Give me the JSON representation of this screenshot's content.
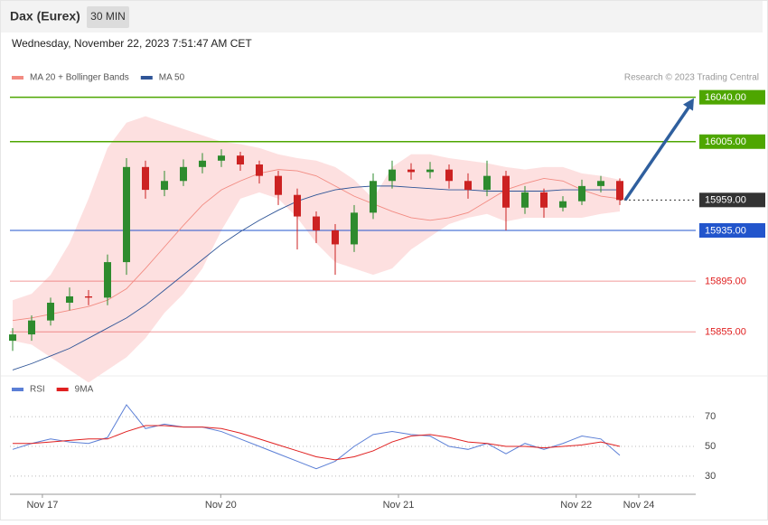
{
  "header": {
    "title": "Dax (Eurex)",
    "timeframe": "30 MIN"
  },
  "timestamp": "Wednesday, November 22, 2023 7:51:47 AM CET",
  "chart_data": [
    {
      "type": "candlestick",
      "credit": "Research © 2023 Trading Central",
      "up_color": "#2e8b2e",
      "down_color": "#cc2222",
      "xlim": [
        -0.43,
        108
      ],
      "ylim": [
        15821,
        16049
      ],
      "x": [
        0,
        3,
        6,
        9,
        12,
        15,
        18,
        21,
        24,
        27,
        30,
        33,
        36,
        39,
        42,
        45,
        48,
        51,
        54,
        57,
        60,
        63,
        66,
        69,
        72,
        75,
        78,
        81,
        84,
        87,
        90,
        93,
        96
      ],
      "open": [
        15848,
        15853,
        15864,
        15878,
        15883,
        15882,
        15910,
        15985,
        15967,
        15974,
        15985,
        15990,
        15994,
        15987,
        15978,
        15963,
        15946,
        15935,
        15924,
        15949,
        15974,
        15983,
        15981,
        15983,
        15974,
        15967,
        15978,
        15953,
        15965,
        15953,
        15958,
        15970,
        15974
      ],
      "high": [
        15858,
        15868,
        15882,
        15890,
        15888,
        15916,
        15992,
        15990,
        15982,
        15991,
        15996,
        15999,
        15997,
        15990,
        15982,
        15968,
        15950,
        15940,
        15955,
        15980,
        15990,
        15988,
        15989,
        15987,
        15980,
        15990,
        15982,
        15970,
        15968,
        15962,
        15975,
        15978,
        15976
      ],
      "low": [
        15840,
        15848,
        15860,
        15872,
        15876,
        15876,
        15900,
        15960,
        15962,
        15970,
        15980,
        15985,
        15982,
        15972,
        15955,
        15920,
        15925,
        15900,
        15918,
        15944,
        15968,
        15975,
        15976,
        15968,
        15960,
        15962,
        15935,
        15948,
        15945,
        15950,
        15955,
        15965,
        15955
      ],
      "close": [
        15853,
        15864,
        15878,
        15883,
        15882,
        15910,
        15985,
        15967,
        15974,
        15985,
        15990,
        15994,
        15987,
        15978,
        15963,
        15946,
        15935,
        15924,
        15949,
        15974,
        15983,
        15981,
        15983,
        15974,
        15967,
        15978,
        15953,
        15965,
        15953,
        15958,
        15970,
        15974,
        15959
      ],
      "series": [
        {
          "name": "MA 20 + Bollinger Bands",
          "color": "#f28b82",
          "band_color": "#fde0e0",
          "values": [
            15864,
            15866,
            15869,
            15872,
            15875,
            15880,
            15889,
            15905,
            15922,
            15939,
            15955,
            15967,
            15974,
            15980,
            15983,
            15982,
            15978,
            15970,
            15962,
            15956,
            15950,
            15945,
            15943,
            15945,
            15949,
            15958,
            15967,
            15972,
            15976,
            15974,
            15967,
            15962,
            15960
          ],
          "upper": [
            15880,
            15885,
            15900,
            15925,
            15960,
            16000,
            16020,
            16025,
            16020,
            16015,
            16010,
            16005,
            16003,
            16000,
            15995,
            15992,
            15990,
            15985,
            15975,
            15960,
            15985,
            15995,
            15995,
            15992,
            15990,
            15988,
            15985,
            15983,
            15985,
            15985,
            15980,
            15978,
            15975
          ],
          "lower": [
            15848,
            15845,
            15835,
            15825,
            15815,
            15825,
            15835,
            15850,
            15870,
            15885,
            15905,
            15935,
            15960,
            15965,
            15960,
            15945,
            15925,
            15910,
            15905,
            15900,
            15905,
            15920,
            15930,
            15940,
            15945,
            15948,
            15942,
            15945,
            15945,
            15945,
            15945,
            15948,
            15950
          ]
        },
        {
          "name": "MA 50",
          "color": "#2f5597",
          "values": [
            15825,
            15830,
            15836,
            15842,
            15850,
            15858,
            15866,
            15876,
            15888,
            15900,
            15912,
            15924,
            15934,
            15943,
            15951,
            15958,
            15963,
            15967,
            15969,
            15970,
            15970,
            15969,
            15968,
            15967,
            15967,
            15966,
            15966,
            15966,
            15966,
            15967,
            15967,
            15967,
            15967
          ]
        }
      ],
      "levels": [
        {
          "value": 16040,
          "label": "16040.00",
          "color": "#4ea600",
          "style": "tag"
        },
        {
          "value": 16005,
          "label": "16005.00",
          "color": "#4ea600",
          "style": "tag"
        },
        {
          "value": 15959,
          "label": "15959.00",
          "color": "#333333",
          "style": "current"
        },
        {
          "value": 15935,
          "label": "15935.00",
          "color": "#2255cc",
          "style": "tag"
        },
        {
          "value": 15895,
          "label": "15895.00",
          "color": "#e02020",
          "style": "text"
        },
        {
          "value": 15855,
          "label": "15855.00",
          "color": "#e02020",
          "style": "text"
        }
      ]
    },
    {
      "type": "line",
      "xlim": [
        -0.43,
        108
      ],
      "ylim": [
        19,
        95
      ],
      "yticks": [
        30,
        50,
        70
      ],
      "xticks": [
        {
          "value": 4.7,
          "label": "Nov 17"
        },
        {
          "value": 32.9,
          "label": "Nov 20"
        },
        {
          "value": 61,
          "label": "Nov 21"
        },
        {
          "value": 89.1,
          "label": "Nov 22"
        },
        {
          "value": 99,
          "label": "Nov 24"
        }
      ],
      "x": [
        0,
        3,
        6,
        9,
        12,
        15,
        18,
        21,
        24,
        27,
        30,
        33,
        36,
        39,
        42,
        45,
        48,
        51,
        54,
        57,
        60,
        63,
        66,
        69,
        72,
        75,
        78,
        81,
        84,
        87,
        90,
        93,
        96
      ],
      "series": [
        {
          "name": "RSI",
          "color": "#5b7fd6",
          "values": [
            48,
            52,
            55,
            53,
            52,
            56,
            78,
            62,
            65,
            63,
            63,
            60,
            55,
            50,
            45,
            40,
            35,
            40,
            50,
            58,
            60,
            58,
            57,
            50,
            48,
            52,
            45,
            52,
            48,
            52,
            57,
            55,
            44
          ]
        },
        {
          "name": "9MA",
          "color": "#e02020",
          "values": [
            52,
            52,
            53,
            54,
            55,
            55,
            60,
            64,
            64,
            63,
            63,
            62,
            59,
            55,
            51,
            47,
            43,
            41,
            43,
            47,
            53,
            57,
            58,
            56,
            53,
            52,
            50,
            50,
            49,
            50,
            51,
            53,
            50
          ]
        }
      ]
    }
  ]
}
